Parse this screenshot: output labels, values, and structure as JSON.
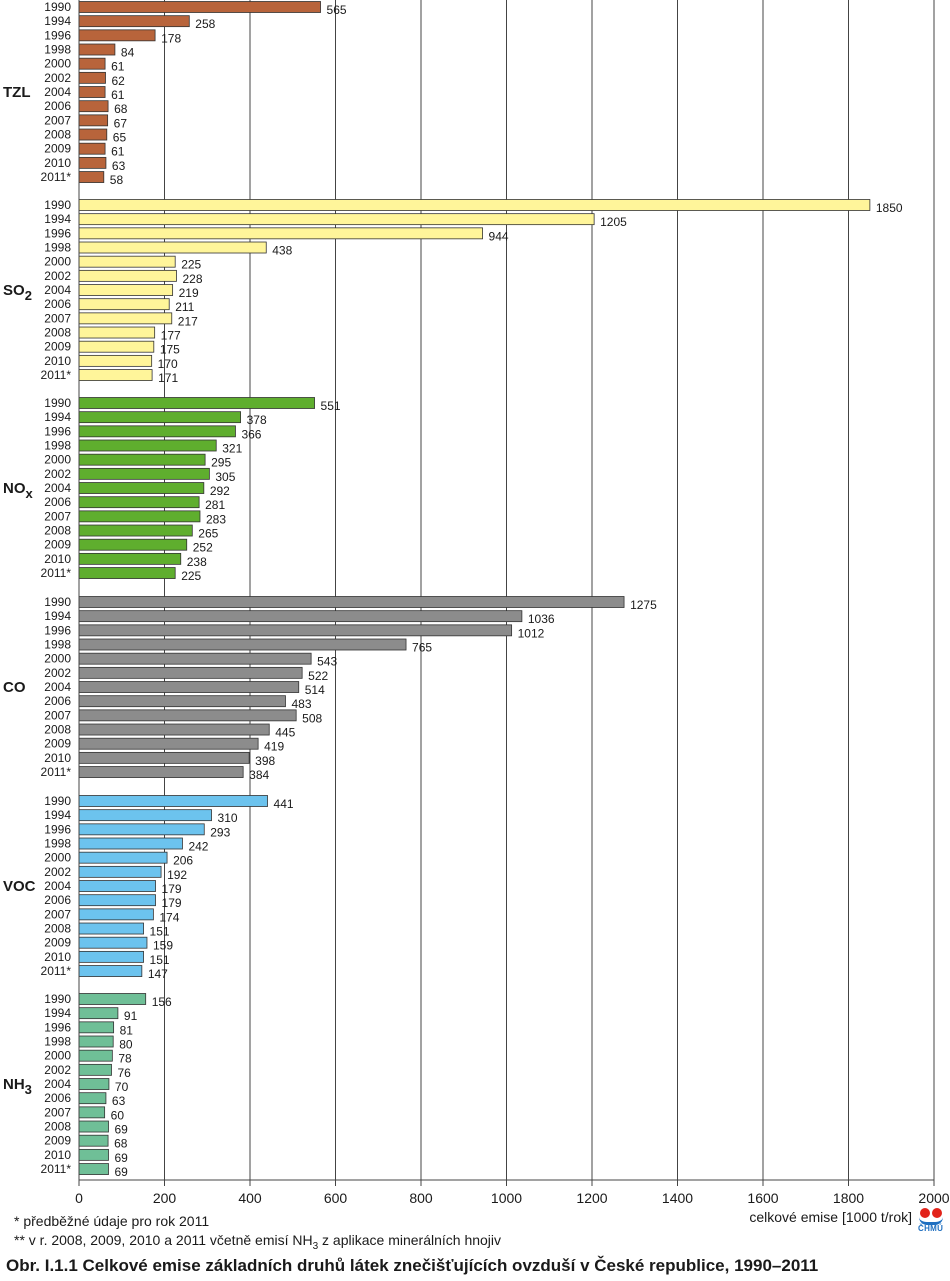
{
  "chart_data": {
    "type": "bar",
    "orientation": "horizontal",
    "title": "Obr. I.1.1  Celkové emise základních druhů látek znečišťujících ovzduší v České republice, 1990–2011",
    "xlabel": "celkové emise [1000 t/rok]",
    "xlim": [
      0,
      2000
    ],
    "xticks": [
      0,
      200,
      400,
      600,
      800,
      1000,
      1200,
      1400,
      1600,
      1800,
      2000
    ],
    "grid": "vertical",
    "groups": [
      {
        "label": "TZL",
        "sub": "",
        "color": "#b8643b",
        "categories": [
          "1990",
          "1994",
          "1996",
          "1998",
          "2000",
          "2002",
          "2004",
          "2006",
          "2007",
          "2008",
          "2009",
          "2010",
          "2011*"
        ],
        "values": [
          565,
          258,
          178,
          84,
          61,
          62,
          61,
          68,
          67,
          65,
          61,
          63,
          58
        ]
      },
      {
        "label": "SO",
        "sub": "2",
        "color": "#fff59a",
        "categories": [
          "1990",
          "1994",
          "1996",
          "1998",
          "2000",
          "2002",
          "2004",
          "2006",
          "2007",
          "2008",
          "2009",
          "2010",
          "2011*"
        ],
        "values": [
          1850,
          1205,
          944,
          438,
          225,
          228,
          219,
          211,
          217,
          177,
          175,
          170,
          171
        ]
      },
      {
        "label": "NO",
        "sub": "x",
        "color": "#5fae2e",
        "categories": [
          "1990",
          "1994",
          "1996",
          "1998",
          "2000",
          "2002",
          "2004",
          "2006",
          "2007",
          "2008",
          "2009",
          "2010",
          "2011*"
        ],
        "values": [
          551,
          378,
          366,
          321,
          295,
          305,
          292,
          281,
          283,
          265,
          252,
          238,
          225
        ]
      },
      {
        "label": "CO",
        "sub": "",
        "color": "#8c8c8c",
        "categories": [
          "1990",
          "1994",
          "1996",
          "1998",
          "2000",
          "2002",
          "2004",
          "2006",
          "2007",
          "2008",
          "2009",
          "2010",
          "2011*"
        ],
        "values": [
          1275,
          1036,
          1012,
          765,
          543,
          522,
          514,
          483,
          508,
          445,
          419,
          398,
          384
        ]
      },
      {
        "label": "VOC",
        "sub": "",
        "color": "#6cc3ee",
        "categories": [
          "1990",
          "1994",
          "1996",
          "1998",
          "2000",
          "2002",
          "2004",
          "2006",
          "2007",
          "2008",
          "2009",
          "2010",
          "2011*"
        ],
        "values": [
          441,
          310,
          293,
          242,
          206,
          192,
          179,
          179,
          174,
          151,
          159,
          151,
          147
        ]
      },
      {
        "label": "NH",
        "sub": "3",
        "color": "#6fbf97",
        "categories": [
          "1990",
          "1994",
          "1996",
          "1998",
          "2000",
          "2002",
          "2004",
          "2006",
          "2007",
          "2008",
          "2009",
          "2010",
          "2011*"
        ],
        "values": [
          156,
          91,
          81,
          80,
          78,
          76,
          70,
          63,
          60,
          69,
          68,
          69,
          69
        ]
      }
    ]
  },
  "footnotes": {
    "note1": "*   předběžné údaje pro rok 2011",
    "note2_prefix": "**  v r. 2008, 2009, 2010 a 2011 včetně emisí NH",
    "note2_sub": "3",
    "note2_suffix": " z aplikace minerálních hnojiv"
  },
  "logo": {
    "text": "ČHMÚ"
  }
}
